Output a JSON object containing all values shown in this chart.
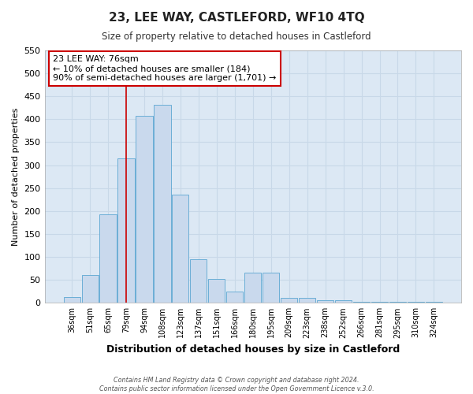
{
  "title": "23, LEE WAY, CASTLEFORD, WF10 4TQ",
  "subtitle": "Size of property relative to detached houses in Castleford",
  "xlabel": "Distribution of detached houses by size in Castleford",
  "ylabel": "Number of detached properties",
  "categories": [
    "36sqm",
    "51sqm",
    "65sqm",
    "79sqm",
    "94sqm",
    "108sqm",
    "123sqm",
    "137sqm",
    "151sqm",
    "166sqm",
    "180sqm",
    "195sqm",
    "209sqm",
    "223sqm",
    "238sqm",
    "252sqm",
    "266sqm",
    "281sqm",
    "295sqm",
    "310sqm",
    "324sqm"
  ],
  "bar_heights": [
    12,
    60,
    192,
    315,
    408,
    432,
    235,
    95,
    52,
    25,
    65,
    65,
    10,
    10,
    5,
    5,
    2,
    2,
    2,
    2,
    2
  ],
  "bar_color": "#c9d9ed",
  "bar_edge_color": "#6baed6",
  "vline_x_index": 3,
  "vline_color": "#cc0000",
  "ylim": [
    0,
    550
  ],
  "yticks": [
    0,
    50,
    100,
    150,
    200,
    250,
    300,
    350,
    400,
    450,
    500,
    550
  ],
  "annotation_title": "23 LEE WAY: 76sqm",
  "annotation_line1": "← 10% of detached houses are smaller (184)",
  "annotation_line2": "90% of semi-detached houses are larger (1,701) →",
  "annotation_box_color": "#ffffff",
  "annotation_box_edge_color": "#cc0000",
  "grid_color": "#c8d8e8",
  "plot_bg_color": "#dce8f4",
  "fig_bg_color": "#ffffff",
  "footer_line1": "Contains HM Land Registry data © Crown copyright and database right 2024.",
  "footer_line2": "Contains public sector information licensed under the Open Government Licence v.3.0."
}
